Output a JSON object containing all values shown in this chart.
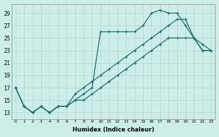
{
  "xlabel": "Humidex (Indice chaleur)",
  "bg_color": "#cceee8",
  "grid_color": "#b8d8d4",
  "line_color": "#1a6b6b",
  "xlim": [
    -0.5,
    23.5
  ],
  "ylim": [
    12,
    30.5
  ],
  "yticks": [
    13,
    15,
    17,
    19,
    21,
    23,
    25,
    27,
    29
  ],
  "xticks": [
    0,
    1,
    2,
    3,
    4,
    5,
    6,
    7,
    8,
    9,
    10,
    11,
    12,
    13,
    14,
    15,
    16,
    17,
    18,
    19,
    20,
    21,
    22,
    23
  ],
  "line1_x": [
    0,
    1,
    2,
    3,
    4,
    5,
    6,
    7,
    8,
    9,
    10,
    11,
    12,
    13,
    14,
    15,
    16,
    17,
    18,
    19,
    20,
    21,
    22,
    23
  ],
  "line1_y": [
    17,
    14,
    13,
    14,
    13,
    14,
    14,
    15,
    16,
    17,
    26,
    26,
    26,
    26,
    26,
    27,
    29,
    29.5,
    29,
    29,
    27,
    25,
    23,
    23
  ],
  "line2_x": [
    0,
    1,
    2,
    3,
    4,
    5,
    6,
    7,
    8,
    9,
    10,
    11,
    12,
    13,
    14,
    15,
    16,
    17,
    18,
    19,
    20,
    21,
    22,
    23
  ],
  "line2_y": [
    17,
    14,
    13,
    14,
    13,
    14,
    14,
    15,
    15,
    16,
    17,
    18,
    19,
    20,
    21,
    22,
    23,
    24,
    25,
    25,
    25,
    25,
    23,
    23
  ],
  "line3_x": [
    0,
    1,
    2,
    3,
    4,
    5,
    6,
    7,
    8,
    9,
    10,
    11,
    12,
    13,
    14,
    15,
    16,
    17,
    18,
    19,
    20,
    21,
    22,
    23
  ],
  "line3_y": [
    17,
    14,
    13,
    14,
    13,
    14,
    14,
    16,
    17,
    18,
    19,
    20,
    21,
    22,
    23,
    24,
    25,
    26,
    27,
    28,
    28,
    25,
    24,
    23
  ]
}
